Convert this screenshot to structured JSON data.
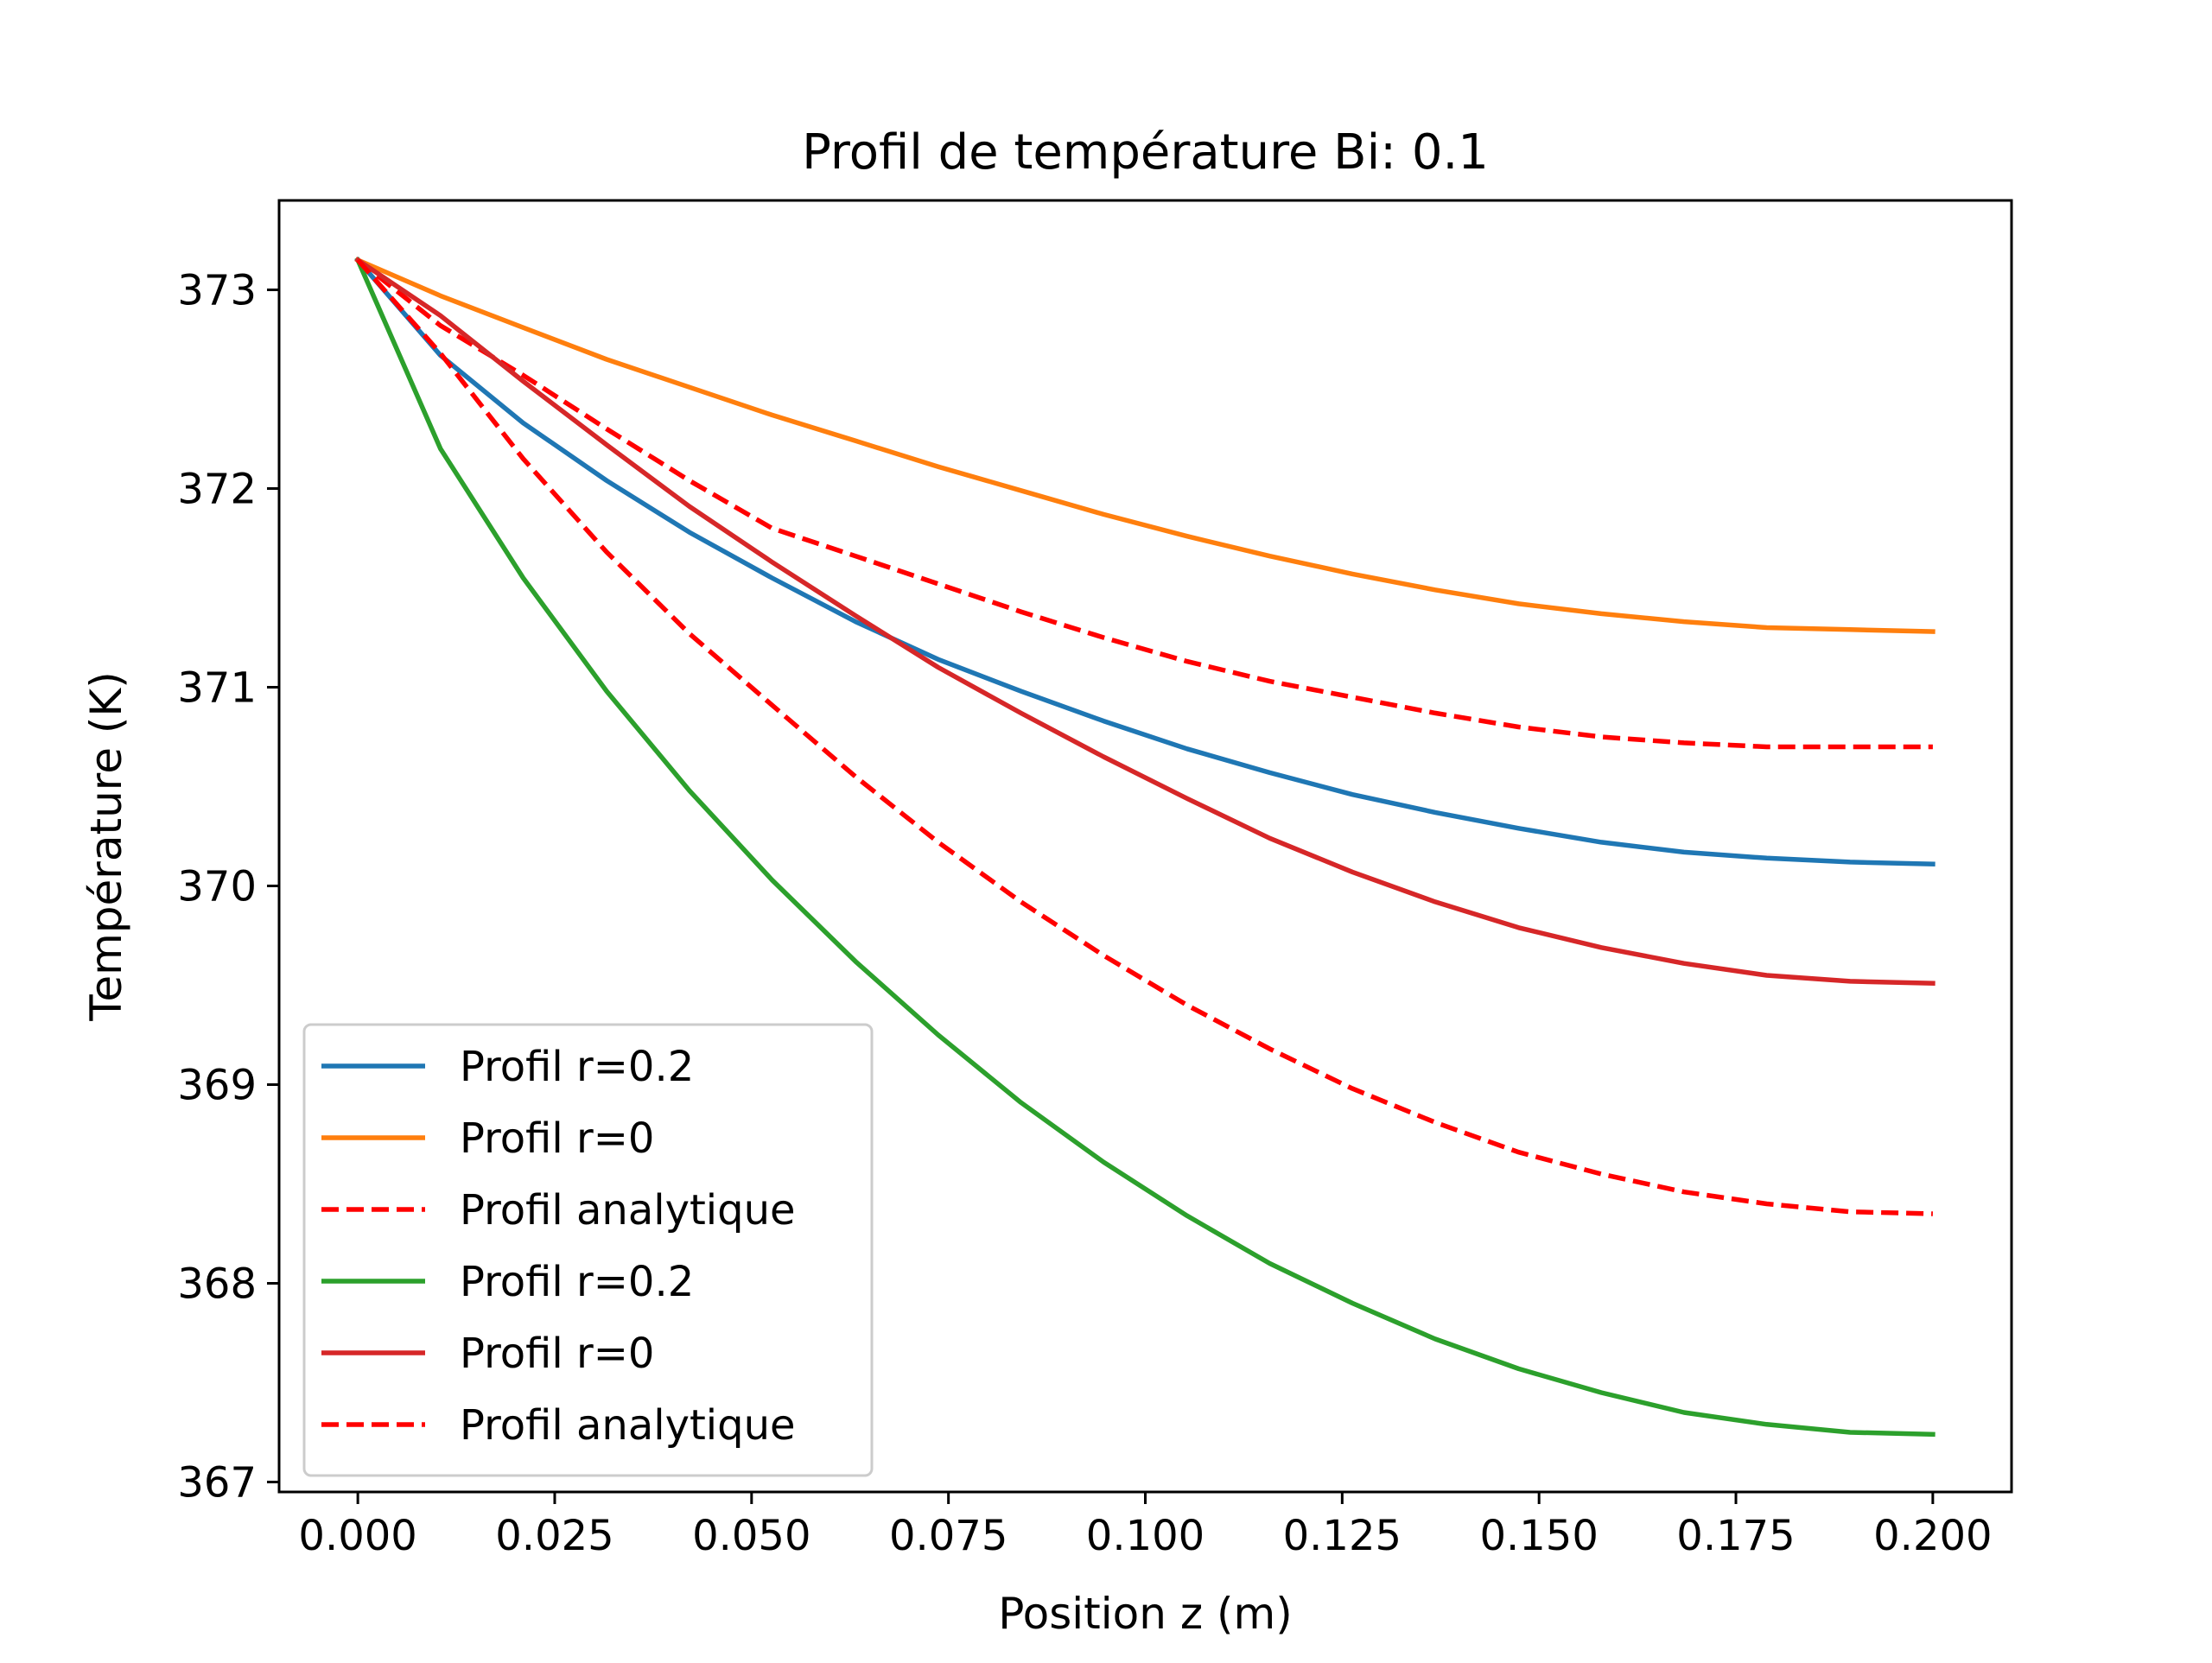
{
  "chart_data": {
    "type": "line",
    "title": "Profil de température Bi: 0.1",
    "xlabel": "Position z (m)",
    "ylabel": "Température (K)",
    "xlim": [
      -0.01,
      0.21
    ],
    "ylim": [
      366.95,
      373.45
    ],
    "grid": false,
    "legend_position": "lower-left",
    "x_ticks": [
      0.0,
      0.025,
      0.05,
      0.075,
      0.1,
      0.125,
      0.15,
      0.175,
      0.2
    ],
    "x_tick_labels": [
      "0.000",
      "0.025",
      "0.050",
      "0.075",
      "0.100",
      "0.125",
      "0.150",
      "0.175",
      "0.200"
    ],
    "y_ticks": [
      367,
      368,
      369,
      370,
      371,
      372,
      373
    ],
    "y_tick_labels": [
      "367",
      "368",
      "369",
      "370",
      "371",
      "372",
      "373"
    ],
    "x": [
      0.0,
      0.0105,
      0.021,
      0.0316,
      0.0421,
      0.0526,
      0.0632,
      0.0737,
      0.0842,
      0.0947,
      0.1053,
      0.1158,
      0.1263,
      0.1368,
      0.1474,
      0.1579,
      0.1684,
      0.1789,
      0.1895,
      0.2
    ],
    "series": [
      {
        "name": "Profil r=0.2",
        "color": "#1f77b4",
        "style": "solid",
        "values": [
          373.15,
          372.67,
          372.33,
          372.04,
          371.78,
          371.55,
          371.33,
          371.14,
          370.98,
          370.83,
          370.69,
          370.57,
          370.46,
          370.37,
          370.29,
          370.22,
          370.17,
          370.14,
          370.12,
          370.11
        ]
      },
      {
        "name": "Profil r=0",
        "color": "#ff7f0e",
        "style": "solid",
        "values": [
          373.15,
          372.97,
          372.81,
          372.65,
          372.51,
          372.37,
          372.24,
          372.11,
          371.99,
          371.87,
          371.76,
          371.66,
          371.57,
          371.49,
          371.42,
          371.37,
          371.33,
          371.3,
          371.29,
          371.28
        ]
      },
      {
        "name": "Profil analytique",
        "color": "#ff0000",
        "style": "dashed",
        "values": [
          373.15,
          372.82,
          372.57,
          372.3,
          372.04,
          371.8,
          371.66,
          371.52,
          371.38,
          371.25,
          371.13,
          371.03,
          370.95,
          370.87,
          370.8,
          370.75,
          370.72,
          370.7,
          370.7,
          370.7
        ]
      },
      {
        "name": "Profil r=0.2",
        "color": "#2ca02c",
        "style": "solid",
        "values": [
          373.15,
          372.2,
          371.55,
          370.98,
          370.48,
          370.03,
          369.62,
          369.25,
          368.91,
          368.61,
          368.34,
          368.1,
          367.9,
          367.72,
          367.57,
          367.45,
          367.35,
          367.29,
          367.25,
          367.24
        ]
      },
      {
        "name": "Profil r=0",
        "color": "#d62728",
        "style": "solid",
        "values": [
          373.15,
          372.87,
          372.54,
          372.22,
          371.91,
          371.63,
          371.36,
          371.1,
          370.87,
          370.65,
          370.44,
          370.24,
          370.07,
          369.92,
          369.79,
          369.69,
          369.61,
          369.55,
          369.52,
          369.51
        ]
      },
      {
        "name": "Profil analytique",
        "color": "#ff0000",
        "style": "dashed",
        "values": [
          373.15,
          372.68,
          372.15,
          371.68,
          371.27,
          370.91,
          370.55,
          370.22,
          369.92,
          369.65,
          369.4,
          369.18,
          368.98,
          368.81,
          368.66,
          368.55,
          368.46,
          368.4,
          368.36,
          368.35
        ]
      }
    ]
  }
}
